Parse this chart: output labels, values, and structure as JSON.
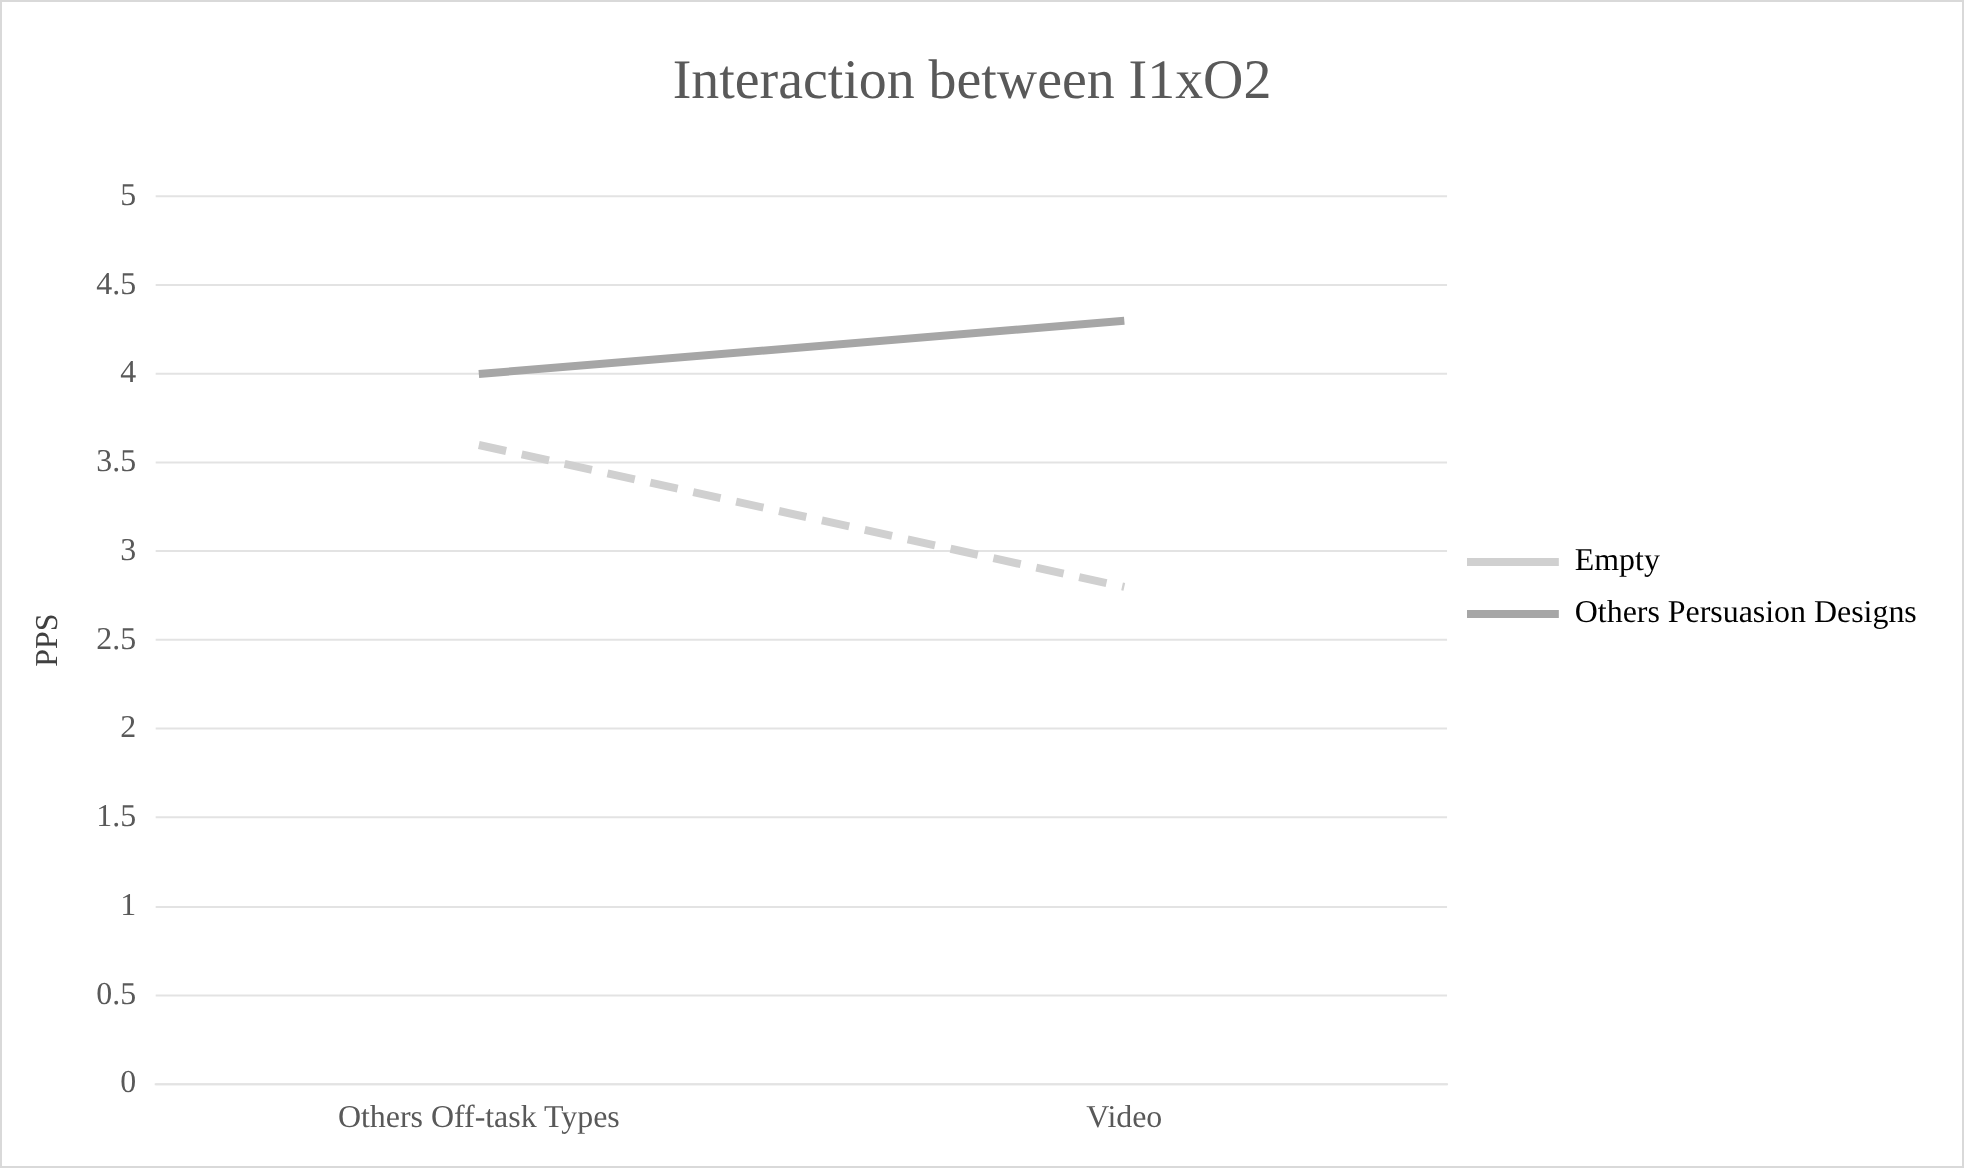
{
  "chart_data": {
    "type": "line",
    "title": "Interaction between I1xO2",
    "ylabel": "PPS",
    "categories": [
      "Others Off-task Types",
      "Video"
    ],
    "series": [
      {
        "name": "Empty",
        "color": "#d0d0d0",
        "values": [
          3.6,
          2.8
        ],
        "line_style": "dashed"
      },
      {
        "name": "Others Persuasion Designs",
        "color": "#a6a6a6",
        "values": [
          4.0,
          4.3
        ],
        "line_style": "solid"
      }
    ],
    "ylim": [
      0,
      5
    ],
    "yticks": [
      0,
      0.5,
      1,
      1.5,
      2,
      2.5,
      3,
      3.5,
      4,
      4.5,
      5
    ],
    "grid": "y",
    "legend": "right",
    "marker": "none"
  }
}
